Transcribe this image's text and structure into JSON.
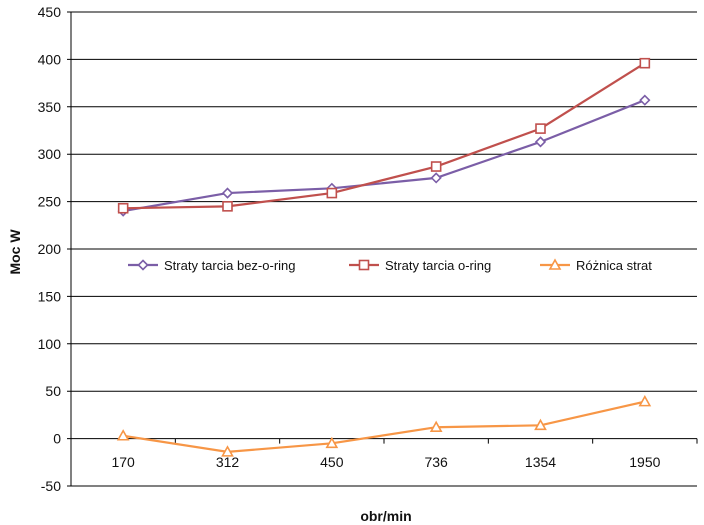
{
  "chart_data": {
    "type": "line",
    "categories": [
      "170",
      "312",
      "450",
      "736",
      "1354",
      "1950"
    ],
    "series": [
      {
        "name": "Straty tarcia bez-o-ring",
        "color": "#7b5ea7",
        "marker": "diamond",
        "values": [
          240,
          259,
          264,
          275,
          313,
          357
        ]
      },
      {
        "name": "Straty tarcia o-ring",
        "color": "#c0504d",
        "marker": "square",
        "values": [
          243,
          245,
          259,
          287,
          327,
          396
        ]
      },
      {
        "name": "Różnica strat",
        "color": "#f79646",
        "marker": "triangle",
        "values": [
          3,
          -14,
          -5,
          12,
          14,
          39
        ]
      }
    ],
    "ylim": [
      -50,
      450
    ],
    "yticks": [
      -50,
      0,
      50,
      100,
      150,
      200,
      250,
      300,
      350,
      400,
      450
    ],
    "xlabel": "obr/min",
    "ylabel": "Moc  W",
    "grid": true,
    "legend": "middle"
  }
}
